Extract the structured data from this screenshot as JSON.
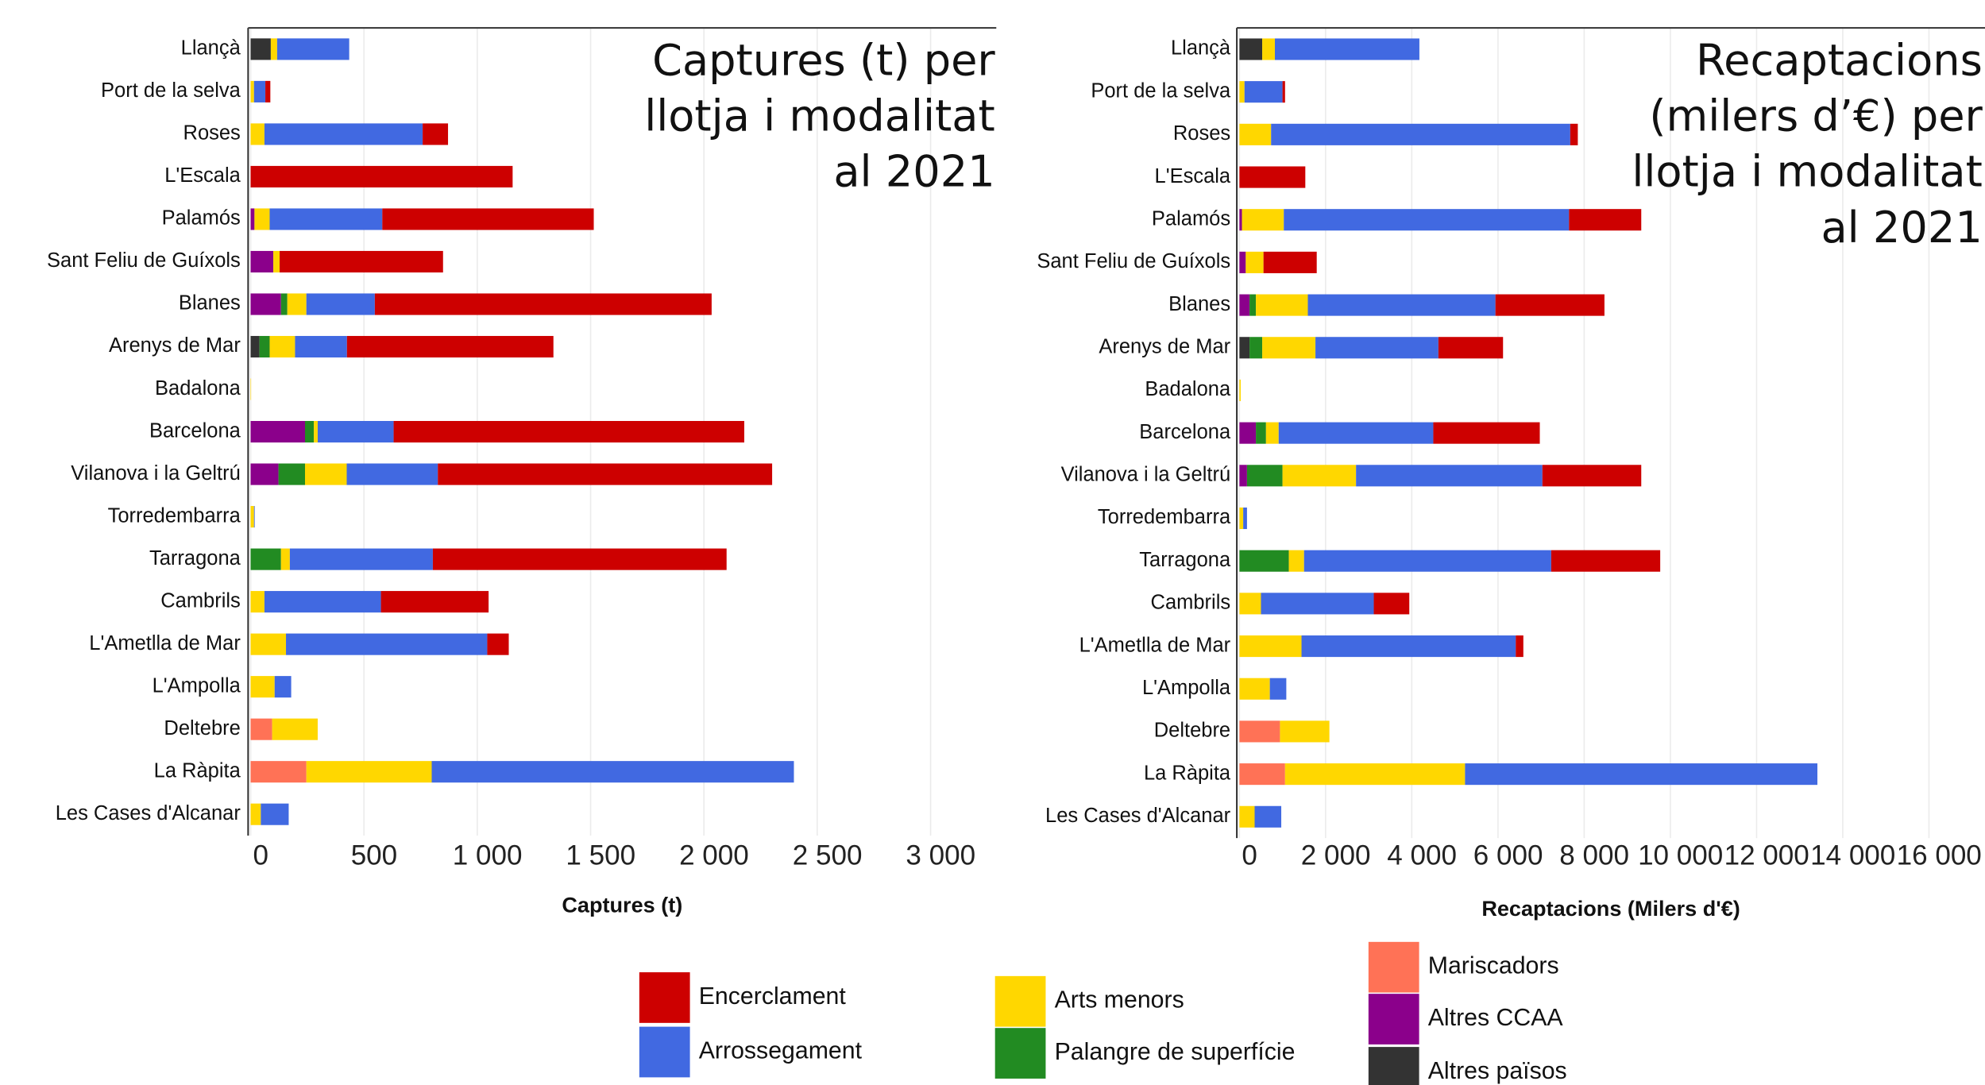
{
  "chart_data": [
    {
      "type": "bar",
      "orientation": "horizontal",
      "stacked": true,
      "title": [
        "Captures (t) per",
        "llotja i modalitat",
        "al 2021"
      ],
      "x_label": "Captures (t)",
      "categories": [
        "Llançà",
        "Port de la selva",
        "Roses",
        "L'Escala",
        "Palamós",
        "Sant Feliu de Guíxols",
        "Blanes",
        "Arenys de Mar",
        "Badalona",
        "Barcelona",
        "Vilanova i la Geltrú",
        "Torredembarra",
        "Tarragona",
        "Cambrils",
        "L'Ametlla de Mar",
        "L'Ampolla",
        "Deltebre",
        "La Ràpita",
        "Les Cases d'Alcanar"
      ],
      "xlim": [
        -11,
        3290
      ],
      "xticks": [
        0,
        500,
        {
          "value": 1000,
          "label": "1 000"
        },
        {
          "value": 1500,
          "label": "1 500"
        },
        {
          "value": 2000,
          "label": "2 000"
        },
        {
          "value": 2500,
          "label": "2 500"
        },
        {
          "value": 3000,
          "label": "3 000"
        }
      ],
      "grid": true,
      "series": [
        {
          "name": "Altres països",
          "color": "#333333",
          "values": [
            89,
            0,
            0,
            0,
            0,
            0,
            0,
            39,
            0,
            0,
            0,
            0,
            0,
            0,
            0,
            0,
            0,
            0,
            0
          ]
        },
        {
          "name": "Altres CCAA",
          "color": "#8b008b",
          "values": [
            0,
            0,
            0,
            0,
            17,
            100,
            134,
            0,
            0,
            240,
            123,
            0,
            0,
            0,
            0,
            0,
            0,
            0,
            0
          ]
        },
        {
          "name": "Mariscadors",
          "color": "#ff7256",
          "values": [
            0,
            0,
            0,
            0,
            0,
            0,
            0,
            0,
            0,
            0,
            0,
            0,
            0,
            0,
            0,
            0,
            95,
            246,
            0
          ]
        },
        {
          "name": "Palangre de superfície",
          "color": "#228b22",
          "values": [
            0,
            0,
            0,
            0,
            0,
            0,
            28,
            45,
            0,
            39,
            117,
            0,
            134,
            0,
            0,
            0,
            0,
            0,
            0
          ]
        },
        {
          "name": "Arts menors",
          "color": "#ffd700",
          "values": [
            28,
            15,
            61,
            0,
            67,
            28,
            84,
            112,
            2,
            17,
            184,
            15,
            39,
            61,
            156,
            106,
            201,
            553,
            45
          ]
        },
        {
          "name": "Arrossegament",
          "color": "#4169e1",
          "values": [
            318,
            50,
            698,
            0,
            497,
            0,
            302,
            229,
            0,
            335,
            402,
            3,
            631,
            514,
            888,
            73,
            0,
            1598,
            123
          ]
        },
        {
          "name": "Encerclament",
          "color": "#cd0000",
          "values": [
            0,
            22,
            112,
            1156,
            933,
            721,
            1486,
            911,
            0,
            1547,
            1475,
            0,
            1296,
            475,
            95,
            0,
            0,
            0,
            0
          ]
        }
      ]
    },
    {
      "type": "bar",
      "orientation": "horizontal",
      "stacked": true,
      "title": [
        "Recaptacions",
        "(milers d’€) per",
        "llotja i modalitat",
        "al 2021"
      ],
      "x_label": "Recaptacions (Milers d'€)",
      "categories": [
        "Llançà",
        "Port de la selva",
        "Roses",
        "L'Escala",
        "Palamós",
        "Sant Feliu de Guíxols",
        "Blanes",
        "Arenys de Mar",
        "Badalona",
        "Barcelona",
        "Vilanova i la Geltrú",
        "Torredembarra",
        "Tarragona",
        "Cambrils",
        "L'Ametlla de Mar",
        "L'Ampolla",
        "Deltebre",
        "La Ràpita",
        "Les Cases d'Alcanar"
      ],
      "xlim": [
        -60,
        17300
      ],
      "xticks": [
        0,
        {
          "value": 2000,
          "label": "2 000"
        },
        {
          "value": 4000,
          "label": "4 000"
        },
        {
          "value": 6000,
          "label": "6 000"
        },
        {
          "value": 8000,
          "label": "8 000"
        },
        {
          "value": 10000,
          "label": "10 000"
        },
        {
          "value": 12000,
          "label": "12 000"
        },
        {
          "value": 14000,
          "label": "14 000"
        },
        {
          "value": 16000,
          "label": "16 000"
        }
      ],
      "grid": true,
      "series": [
        {
          "color": "#333333",
          "values": [
            529,
            0,
            0,
            0,
            0,
            0,
            0,
            235,
            0,
            0,
            0,
            0,
            0,
            0,
            0,
            0,
            0,
            0,
            0
          ]
        },
        {
          "color": "#8b008b",
          "values": [
            0,
            0,
            0,
            0,
            59,
            147,
            235,
            0,
            0,
            382,
            176,
            0,
            0,
            0,
            0,
            0,
            0,
            0,
            0
          ]
        },
        {
          "color": "#ff7256",
          "values": [
            0,
            0,
            0,
            0,
            0,
            0,
            0,
            0,
            0,
            0,
            0,
            0,
            0,
            0,
            0,
            0,
            941,
            1059,
            0
          ]
        },
        {
          "color": "#228b22",
          "values": [
            0,
            0,
            0,
            0,
            0,
            0,
            147,
            294,
            0,
            235,
            824,
            0,
            1147,
            0,
            0,
            0,
            0,
            0,
            0
          ]
        },
        {
          "color": "#ffd700",
          "values": [
            294,
            118,
            735,
            0,
            971,
            412,
            1206,
            1235,
            30,
            294,
            1706,
            88,
            353,
            500,
            1441,
            706,
            1147,
            4176,
            353
          ]
        },
        {
          "color": "#4169e1",
          "values": [
            3353,
            882,
            6941,
            0,
            6618,
            0,
            4353,
            2853,
            0,
            3588,
            4324,
            88,
            5735,
            2618,
            4971,
            382,
            0,
            8176,
            618
          ]
        },
        {
          "color": "#cd0000",
          "values": [
            0,
            59,
            176,
            1529,
            1676,
            1235,
            2529,
            1500,
            0,
            2471,
            2294,
            0,
            2529,
            824,
            176,
            0,
            0,
            0,
            0
          ]
        }
      ]
    }
  ]
}
